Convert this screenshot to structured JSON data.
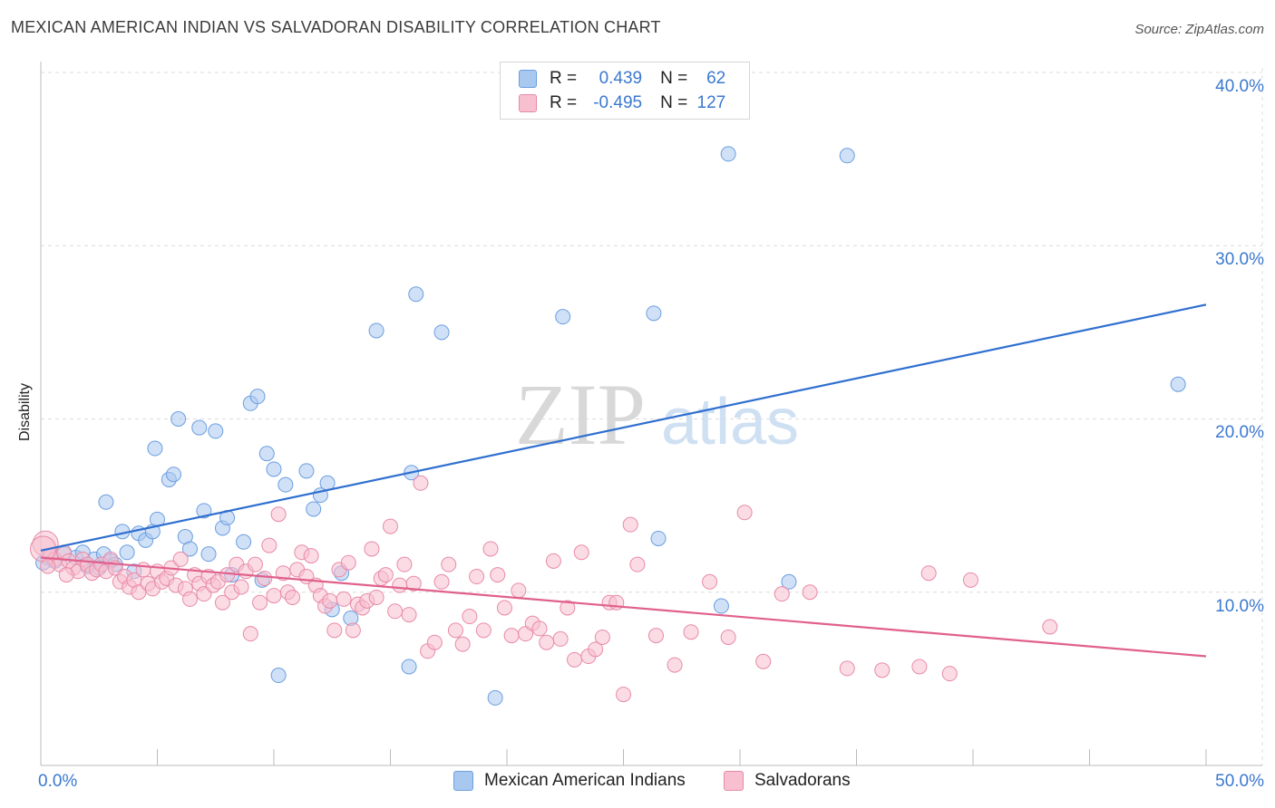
{
  "title": "MEXICAN AMERICAN INDIAN VS SALVADORAN DISABILITY CORRELATION CHART",
  "source": "Source: ZipAtlas.com",
  "watermark": {
    "zip": "ZIP",
    "atlas": "atlas"
  },
  "legend": {
    "rows": [
      {
        "r_label": "R = ",
        "r_value": "0.439",
        "n_label": "N = ",
        "n_value": "62",
        "color": "#a9c8f0",
        "border": "#6a9ee0"
      },
      {
        "r_label": "R = ",
        "r_value": "-0.495",
        "n_label": "N = ",
        "n_value": "127",
        "color": "#f7bfd0",
        "border": "#e88aa8"
      }
    ]
  },
  "chart_data": {
    "type": "scatter",
    "title": "MEXICAN AMERICAN INDIAN VS SALVADORAN DISABILITY CORRELATION CHART",
    "xlabel": "",
    "ylabel": "Disability",
    "xlim": [
      0,
      50
    ],
    "ylim": [
      0,
      40
    ],
    "x_tick_labels": [
      "0.0%",
      "50.0%"
    ],
    "y_ticks": [
      10,
      20,
      30,
      40
    ],
    "y_tick_labels": [
      "10.0%",
      "20.0%",
      "30.0%",
      "40.0%"
    ],
    "grid": true,
    "legend_position": "top-center",
    "series": [
      {
        "name": "Mexican American Indians",
        "color": "#6a9ee0",
        "fill": "#a9c8f0",
        "trend": {
          "x": [
            0,
            50
          ],
          "y": [
            12.4,
            26.6
          ],
          "color": "#2f6fd0"
        },
        "points": [
          [
            0.3,
            12.0
          ],
          [
            0.6,
            11.8
          ],
          [
            1.0,
            12.2
          ],
          [
            1.5,
            12.0
          ],
          [
            1.8,
            12.3
          ],
          [
            2.0,
            11.5
          ],
          [
            2.3,
            11.9
          ],
          [
            2.5,
            11.4
          ],
          [
            2.7,
            12.2
          ],
          [
            3.0,
            11.8
          ],
          [
            3.2,
            11.6
          ],
          [
            2.8,
            15.2
          ],
          [
            3.5,
            13.5
          ],
          [
            3.7,
            12.3
          ],
          [
            4.0,
            11.2
          ],
          [
            4.2,
            13.4
          ],
          [
            4.5,
            13.0
          ],
          [
            4.8,
            13.5
          ],
          [
            5.0,
            14.2
          ],
          [
            4.9,
            18.3
          ],
          [
            5.5,
            16.5
          ],
          [
            5.7,
            16.8
          ],
          [
            5.9,
            20.0
          ],
          [
            6.2,
            13.2
          ],
          [
            6.4,
            12.5
          ],
          [
            6.8,
            19.5
          ],
          [
            7.0,
            14.7
          ],
          [
            7.2,
            12.2
          ],
          [
            7.5,
            19.3
          ],
          [
            7.8,
            13.7
          ],
          [
            8.0,
            14.3
          ],
          [
            8.2,
            11.0
          ],
          [
            8.7,
            12.9
          ],
          [
            9.0,
            20.9
          ],
          [
            9.3,
            21.3
          ],
          [
            9.5,
            10.7
          ],
          [
            9.7,
            18.0
          ],
          [
            10.0,
            17.1
          ],
          [
            10.2,
            5.2
          ],
          [
            10.5,
            16.2
          ],
          [
            11.4,
            17.0
          ],
          [
            11.7,
            14.8
          ],
          [
            12.0,
            15.6
          ],
          [
            12.3,
            16.3
          ],
          [
            12.5,
            9.0
          ],
          [
            12.9,
            11.1
          ],
          [
            13.3,
            8.5
          ],
          [
            14.4,
            25.1
          ],
          [
            15.8,
            5.7
          ],
          [
            15.9,
            16.9
          ],
          [
            16.1,
            27.2
          ],
          [
            17.2,
            25.0
          ],
          [
            19.5,
            3.9
          ],
          [
            22.4,
            25.9
          ],
          [
            26.3,
            26.1
          ],
          [
            26.5,
            13.1
          ],
          [
            29.2,
            9.2
          ],
          [
            29.5,
            35.3
          ],
          [
            32.1,
            10.6
          ],
          [
            34.6,
            35.2
          ],
          [
            48.8,
            22.0
          ],
          [
            0.1,
            11.7
          ]
        ]
      },
      {
        "name": "Salvadorans",
        "color": "#e88aa8",
        "fill": "#f7bfd0",
        "trend": {
          "x": [
            0,
            50
          ],
          "y": [
            12.0,
            6.3
          ],
          "color": "#e0608c"
        },
        "points": [
          [
            0.2,
            12.8
          ],
          [
            0.4,
            12.1
          ],
          [
            0.6,
            11.9
          ],
          [
            0.8,
            11.6
          ],
          [
            1.0,
            12.3
          ],
          [
            1.2,
            11.8
          ],
          [
            1.4,
            11.4
          ],
          [
            1.6,
            11.2
          ],
          [
            1.8,
            11.9
          ],
          [
            2.0,
            11.6
          ],
          [
            2.2,
            11.1
          ],
          [
            2.4,
            11.3
          ],
          [
            2.6,
            11.6
          ],
          [
            2.8,
            11.2
          ],
          [
            3.0,
            11.9
          ],
          [
            3.2,
            11.4
          ],
          [
            3.4,
            10.6
          ],
          [
            3.6,
            10.9
          ],
          [
            3.8,
            10.3
          ],
          [
            4.0,
            10.7
          ],
          [
            4.2,
            10.0
          ],
          [
            4.4,
            11.3
          ],
          [
            4.6,
            10.5
          ],
          [
            4.8,
            10.2
          ],
          [
            5.0,
            11.2
          ],
          [
            5.2,
            10.6
          ],
          [
            5.4,
            10.8
          ],
          [
            5.6,
            11.4
          ],
          [
            5.8,
            10.4
          ],
          [
            6.0,
            11.9
          ],
          [
            6.2,
            10.2
          ],
          [
            6.4,
            9.6
          ],
          [
            6.6,
            11.0
          ],
          [
            6.8,
            10.5
          ],
          [
            7.0,
            9.9
          ],
          [
            7.2,
            10.9
          ],
          [
            7.4,
            10.4
          ],
          [
            7.6,
            10.6
          ],
          [
            7.8,
            9.4
          ],
          [
            8.0,
            11.0
          ],
          [
            8.2,
            10.0
          ],
          [
            8.4,
            11.6
          ],
          [
            8.6,
            10.3
          ],
          [
            8.8,
            11.2
          ],
          [
            9.0,
            7.6
          ],
          [
            9.2,
            11.6
          ],
          [
            9.4,
            9.4
          ],
          [
            9.6,
            10.8
          ],
          [
            9.8,
            12.7
          ],
          [
            10.0,
            9.8
          ],
          [
            10.2,
            14.5
          ],
          [
            10.4,
            11.1
          ],
          [
            10.6,
            10.0
          ],
          [
            10.8,
            9.7
          ],
          [
            11.0,
            11.3
          ],
          [
            11.2,
            12.3
          ],
          [
            11.4,
            10.9
          ],
          [
            11.6,
            12.1
          ],
          [
            11.8,
            10.4
          ],
          [
            12.0,
            9.8
          ],
          [
            12.2,
            9.2
          ],
          [
            12.4,
            9.5
          ],
          [
            12.6,
            7.8
          ],
          [
            12.8,
            11.3
          ],
          [
            13.0,
            9.6
          ],
          [
            13.2,
            11.7
          ],
          [
            13.4,
            7.8
          ],
          [
            13.6,
            9.3
          ],
          [
            13.8,
            9.1
          ],
          [
            14.0,
            9.5
          ],
          [
            14.2,
            12.5
          ],
          [
            14.4,
            9.7
          ],
          [
            14.6,
            10.8
          ],
          [
            14.8,
            11.0
          ],
          [
            15.0,
            13.8
          ],
          [
            15.2,
            8.9
          ],
          [
            15.4,
            10.4
          ],
          [
            15.6,
            11.6
          ],
          [
            15.8,
            8.7
          ],
          [
            16.0,
            10.5
          ],
          [
            16.3,
            16.3
          ],
          [
            16.6,
            6.6
          ],
          [
            16.9,
            7.1
          ],
          [
            17.2,
            10.6
          ],
          [
            17.5,
            11.6
          ],
          [
            17.8,
            7.8
          ],
          [
            18.1,
            7.0
          ],
          [
            18.4,
            8.6
          ],
          [
            18.7,
            10.9
          ],
          [
            19.0,
            7.8
          ],
          [
            19.3,
            12.5
          ],
          [
            19.6,
            11.0
          ],
          [
            19.9,
            9.1
          ],
          [
            20.2,
            7.5
          ],
          [
            20.5,
            10.1
          ],
          [
            20.8,
            7.6
          ],
          [
            21.1,
            8.2
          ],
          [
            21.4,
            7.9
          ],
          [
            21.7,
            7.1
          ],
          [
            22.0,
            11.8
          ],
          [
            22.3,
            7.3
          ],
          [
            22.6,
            9.1
          ],
          [
            22.9,
            6.1
          ],
          [
            23.2,
            12.3
          ],
          [
            23.5,
            6.3
          ],
          [
            23.8,
            6.7
          ],
          [
            24.1,
            7.4
          ],
          [
            24.4,
            9.4
          ],
          [
            24.7,
            9.4
          ],
          [
            25.0,
            4.1
          ],
          [
            25.3,
            13.9
          ],
          [
            25.6,
            11.6
          ],
          [
            26.4,
            7.5
          ],
          [
            27.2,
            5.8
          ],
          [
            27.9,
            7.7
          ],
          [
            28.7,
            10.6
          ],
          [
            29.5,
            7.4
          ],
          [
            30.2,
            14.6
          ],
          [
            31.0,
            6.0
          ],
          [
            31.8,
            9.9
          ],
          [
            33.0,
            10.0
          ],
          [
            34.6,
            5.6
          ],
          [
            36.1,
            5.5
          ],
          [
            37.7,
            5.7
          ],
          [
            38.1,
            11.1
          ],
          [
            39.0,
            5.3
          ],
          [
            39.9,
            10.7
          ],
          [
            43.3,
            8.0
          ],
          [
            0.1,
            12.5
          ],
          [
            0.3,
            11.5
          ],
          [
            1.1,
            11.0
          ]
        ]
      }
    ]
  }
}
